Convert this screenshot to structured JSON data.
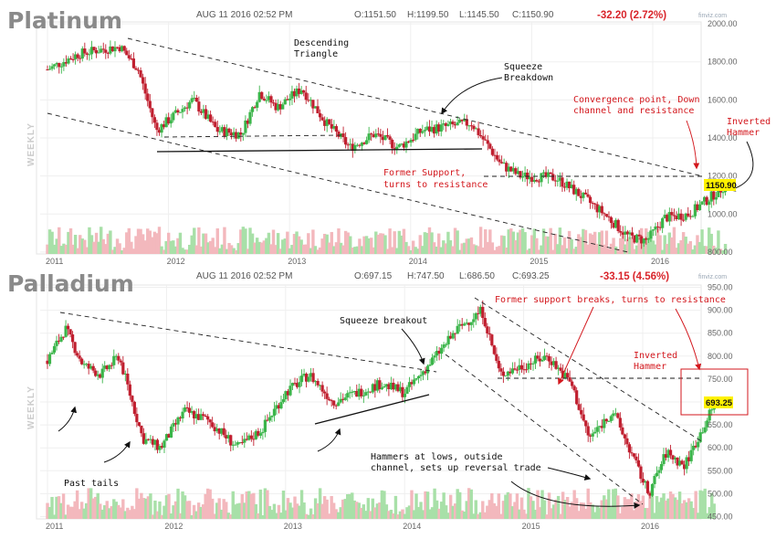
{
  "charts": [
    {
      "title": "Platinum",
      "timestamp": "AUG 11 2016 02:52 PM",
      "ohlc": {
        "o": "O:1151.50",
        "h": "H:1199.50",
        "l": "L:1145.50",
        "c": "C:1150.90"
      },
      "change": "-32.20 (2.72%)",
      "source": "finviz.com",
      "side_label": "WEEKLY",
      "last_price": "1150.90",
      "annotations": {
        "descending": [
          "Descending",
          "Triangle"
        ],
        "squeeze": [
          "Squeeze",
          "Breakdown"
        ],
        "convergence": [
          "Convergence point, Down",
          "channel and resistance"
        ],
        "inverted": [
          "Inverted",
          "Hammer"
        ],
        "former": [
          "Former Support,",
          "turns to resistance"
        ]
      }
    },
    {
      "title": "Palladium",
      "timestamp": "AUG 11 2016 02:52 PM",
      "ohlc": {
        "o": "O:697.15",
        "h": "H:747.50",
        "l": "L:686.50",
        "c": "C:693.25"
      },
      "change": "-33.15 (4.56%)",
      "source": "finviz.com",
      "side_label": "WEEKLY",
      "last_price": "693.25",
      "annotations": {
        "squeeze": [
          "Squeeze breakout"
        ],
        "former": [
          "Former support breaks, turns to resistance"
        ],
        "inverted": [
          "Inverted",
          "Hammer"
        ],
        "hammers": [
          "Hammers at lows, outside",
          "channel, sets up reversal trade"
        ],
        "tails": [
          "Past tails"
        ]
      }
    }
  ],
  "chart_data": [
    {
      "type": "candlestick",
      "title": "Platinum",
      "ylabel": "WEEKLY",
      "x_ticks": [
        "2011",
        "2012",
        "2013",
        "2014",
        "2015",
        "2016"
      ],
      "y_ticks": [
        800,
        1000,
        1200,
        1400,
        1600,
        1800,
        2000
      ],
      "ylim": [
        790,
        2010
      ],
      "grid": true,
      "series": [
        {
          "x": [
            2011.0,
            2011.25,
            2011.4,
            2011.6,
            2011.75,
            2011.9,
            2012.2,
            2012.4,
            2012.6,
            2012.75,
            2012.9,
            2013.1,
            2013.3,
            2013.5,
            2013.7,
            2013.9,
            2014.1,
            2014.3,
            2014.5,
            2014.75,
            2014.9,
            2015.2,
            2015.4,
            2015.6,
            2015.8,
            2015.95,
            2016.1,
            2016.3,
            2016.5,
            2016.6
          ],
          "values": [
            1760,
            1840,
            1860,
            1880,
            1760,
            1440,
            1600,
            1440,
            1420,
            1640,
            1560,
            1660,
            1480,
            1350,
            1420,
            1350,
            1440,
            1460,
            1480,
            1260,
            1200,
            1190,
            1100,
            1000,
            880,
            860,
            980,
            1000,
            1100,
            1150.9
          ]
        }
      ]
    },
    {
      "type": "candlestick",
      "title": "Palladium",
      "ylabel": "WEEKLY",
      "x_ticks": [
        "2011",
        "2012",
        "2013",
        "2014",
        "2015",
        "2016"
      ],
      "y_ticks": [
        450,
        500,
        550,
        600,
        650,
        700,
        750,
        800,
        850,
        900,
        950
      ],
      "ylim": [
        445,
        955
      ],
      "grid": true,
      "series": [
        {
          "x": [
            2011.0,
            2011.15,
            2011.3,
            2011.45,
            2011.6,
            2011.8,
            2011.95,
            2012.15,
            2012.35,
            2012.6,
            2012.8,
            2013.0,
            2013.2,
            2013.4,
            2013.6,
            2013.8,
            2014.0,
            2014.2,
            2014.45,
            2014.65,
            2014.8,
            2015.0,
            2015.2,
            2015.4,
            2015.55,
            2015.75,
            2015.95,
            2016.05,
            2016.2,
            2016.35,
            2016.5,
            2016.6
          ],
          "values": [
            790,
            860,
            780,
            760,
            800,
            620,
            600,
            680,
            660,
            600,
            640,
            720,
            760,
            700,
            720,
            740,
            720,
            780,
            860,
            900,
            760,
            780,
            800,
            740,
            620,
            680,
            560,
            500,
            590,
            560,
            640,
            693.25
          ]
        }
      ]
    }
  ]
}
